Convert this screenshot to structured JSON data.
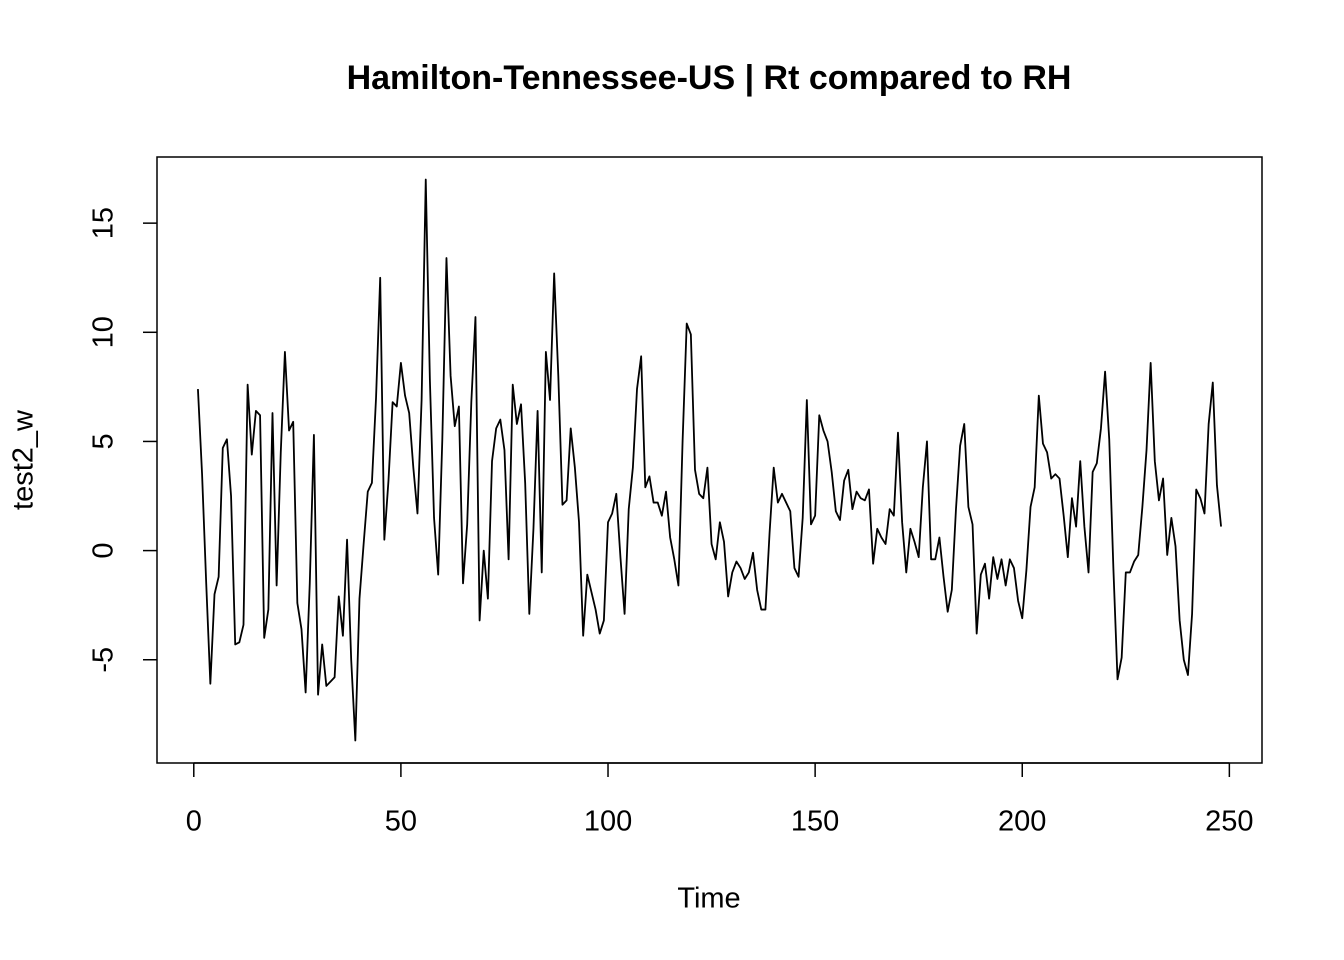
{
  "chart_data": {
    "type": "line",
    "title": "Hamilton-Tennessee-US | Rt compared to RH",
    "x_label": "Time",
    "y_label": "test2_w",
    "color": "#000000",
    "xlim": [
      -8.88,
      257.88
    ],
    "ylim": [
      -9.73,
      18.03
    ],
    "xticks": [
      0,
      50,
      100,
      150,
      200,
      250
    ],
    "yticks": [
      -5,
      0,
      5,
      10,
      15
    ],
    "x": [
      1,
      2,
      3,
      4,
      5,
      6,
      7,
      8,
      9,
      10,
      11,
      12,
      13,
      14,
      15,
      16,
      17,
      18,
      19,
      20,
      21,
      22,
      23,
      24,
      25,
      26,
      27,
      28,
      29,
      30,
      31,
      32,
      33,
      34,
      35,
      36,
      37,
      38,
      39,
      40,
      41,
      42,
      43,
      44,
      45,
      46,
      47,
      48,
      49,
      50,
      51,
      52,
      53,
      54,
      55,
      56,
      57,
      58,
      59,
      60,
      61,
      62,
      63,
      64,
      65,
      66,
      67,
      68,
      69,
      70,
      71,
      72,
      73,
      74,
      75,
      76,
      77,
      78,
      79,
      80,
      81,
      82,
      83,
      84,
      85,
      86,
      87,
      88,
      89,
      90,
      91,
      92,
      93,
      94,
      95,
      96,
      97,
      98,
      99,
      100,
      101,
      102,
      103,
      104,
      105,
      106,
      107,
      108,
      109,
      110,
      111,
      112,
      113,
      114,
      115,
      116,
      117,
      118,
      119,
      120,
      121,
      122,
      123,
      124,
      125,
      126,
      127,
      128,
      129,
      130,
      131,
      132,
      133,
      134,
      135,
      136,
      137,
      138,
      139,
      140,
      141,
      142,
      143,
      144,
      145,
      146,
      147,
      148,
      149,
      150,
      151,
      152,
      153,
      154,
      155,
      156,
      157,
      158,
      159,
      160,
      161,
      162,
      163,
      164,
      165,
      166,
      167,
      168,
      169,
      170,
      171,
      172,
      173,
      174,
      175,
      176,
      177,
      178,
      179,
      180,
      181,
      182,
      183,
      184,
      185,
      186,
      187,
      188,
      189,
      190,
      191,
      192,
      193,
      194,
      195,
      196,
      197,
      198,
      199,
      200,
      201,
      202,
      203,
      204,
      205,
      206,
      207,
      208,
      209,
      210,
      211,
      212,
      213,
      214,
      215,
      216,
      217,
      218,
      219,
      220,
      221,
      222,
      223,
      224,
      225,
      226,
      227,
      228,
      229,
      230,
      231,
      232,
      233,
      234,
      235,
      236,
      237,
      238,
      239,
      240,
      241,
      242,
      243,
      244,
      245,
      246,
      247,
      248
    ],
    "values": [
      7.4,
      3.5,
      -1.5,
      -6.1,
      -2,
      -1.2,
      4.7,
      5.1,
      2.5,
      -4.3,
      -4.2,
      -3.4,
      7.6,
      4.4,
      6.4,
      6.2,
      -4.0,
      -2.7,
      6.3,
      -1.6,
      4.5,
      9.1,
      5.5,
      5.9,
      -2.4,
      -3.6,
      -6.5,
      -1.5,
      5.3,
      -6.6,
      -4.3,
      -6.2,
      -6.0,
      -5.8,
      -2.1,
      -3.9,
      0.5,
      -5,
      -8.7,
      -2.2,
      0.3,
      2.7,
      3.1,
      7.0,
      12.5,
      0.5,
      3.2,
      6.8,
      6.6,
      8.6,
      7.1,
      6.3,
      3.8,
      1.7,
      6.9,
      17.0,
      7.8,
      1.5,
      -1.1,
      5.1,
      13.4,
      8.0,
      5.7,
      6.6,
      -1.5,
      1.2,
      6.8,
      10.7,
      -3.2,
      0,
      -2.2,
      4.1,
      5.6,
      6.0,
      4.6,
      -0.4,
      7.6,
      5.8,
      6.7,
      3.1,
      -2.9,
      1.0,
      6.4,
      -1.0,
      9.1,
      6.9,
      12.7,
      8.0,
      2.1,
      2.3,
      5.6,
      3.8,
      1.3,
      -3.9,
      -1.1,
      -1.9,
      -2.7,
      -3.8,
      -3.2,
      1.3,
      1.7,
      2.6,
      -0.3,
      -2.9,
      1.9,
      3.8,
      7.4,
      8.9,
      2.9,
      3.4,
      2.2,
      2.2,
      1.6,
      2.7,
      0.6,
      -0.4,
      -1.6,
      5.0,
      10.4,
      9.9,
      3.7,
      2.6,
      2.4,
      3.8,
      0.3,
      -0.4,
      1.3,
      0.4,
      -2.1,
      -1.0,
      -0.5,
      -0.8,
      -1.3,
      -1.0,
      -0.1,
      -1.8,
      -2.7,
      -2.7,
      0.8,
      3.8,
      2.2,
      2.6,
      2.2,
      1.8,
      -0.8,
      -1.2,
      1.5,
      6.9,
      1.2,
      1.6,
      6.2,
      5.5,
      5.0,
      3.6,
      1.8,
      1.4,
      3.2,
      3.7,
      1.9,
      2.7,
      2.4,
      2.3,
      2.8,
      -0.6,
      1.0,
      0.6,
      0.3,
      1.9,
      1.6,
      5.4,
      1.3,
      -1.0,
      1.0,
      0.4,
      -0.3,
      2.9,
      5.0,
      -0.4,
      -0.4,
      0.6,
      -1.2,
      -2.8,
      -1.8,
      1.9,
      4.8,
      5.8,
      2.0,
      1.2,
      -3.8,
      -1.1,
      -0.6,
      -2.2,
      -0.3,
      -1.3,
      -0.4,
      -1.6,
      -0.4,
      -0.8,
      -2.3,
      -3.1,
      -0.9,
      2.0,
      2.9,
      7.1,
      4.9,
      4.5,
      3.3,
      3.5,
      3.3,
      1.6,
      -0.3,
      2.4,
      1.1,
      4.1,
      1.1,
      -1.0,
      3.6,
      4.0,
      5.6,
      8.2,
      5.1,
      -0.8,
      -5.9,
      -4.9,
      -1.0,
      -1.0,
      -0.5,
      -0.2,
      2.0,
      4.6,
      8.6,
      4.1,
      2.3,
      3.3,
      -0.2,
      1.5,
      0.2,
      -3.2,
      -5.0,
      -5.7,
      -2.9,
      2.8,
      2.4,
      1.7,
      5.8,
      7.7,
      3.0,
      1.1
    ]
  }
}
